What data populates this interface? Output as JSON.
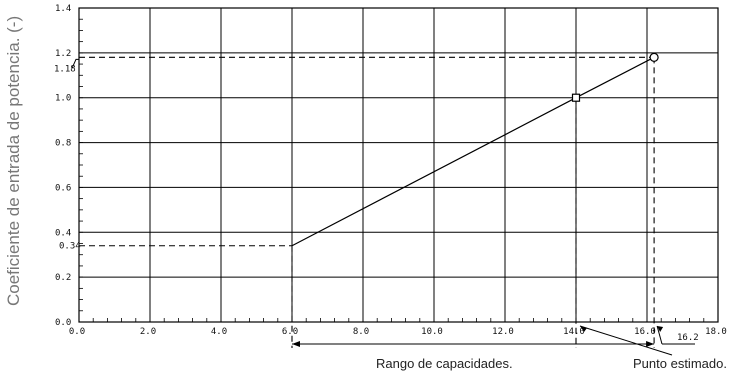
{
  "chart_data": {
    "type": "line",
    "ylabel": "Coeficiente de entrada de potencia. (-)",
    "xlim": [
      0,
      18
    ],
    "ylim": [
      0,
      1.4
    ],
    "xticks": [
      "0.0",
      "2.0",
      "4.0",
      "6.0",
      "8.0",
      "10.0",
      "12.0",
      "14.0",
      "16.0",
      "18.0"
    ],
    "yticks": [
      "0.0",
      "0.2",
      "0.4",
      "0.6",
      "0.8",
      "1.0",
      "1.2",
      "1.4"
    ],
    "grid": true,
    "series": [
      {
        "x": [
          6.0,
          14.0,
          16.2
        ],
        "y": [
          0.34,
          1.0,
          1.18
        ]
      }
    ],
    "markers": [
      {
        "shape": "square",
        "x": 14.0,
        "y": 1.0
      },
      {
        "shape": "circle",
        "x": 16.2,
        "y": 1.18
      }
    ],
    "annotations": {
      "y_low_label": "0.34",
      "y_high_label": "1.18",
      "x_point_label": "16.2",
      "range_label": "Rango de capacidades.",
      "estimate_label": "Punto estimado."
    }
  }
}
